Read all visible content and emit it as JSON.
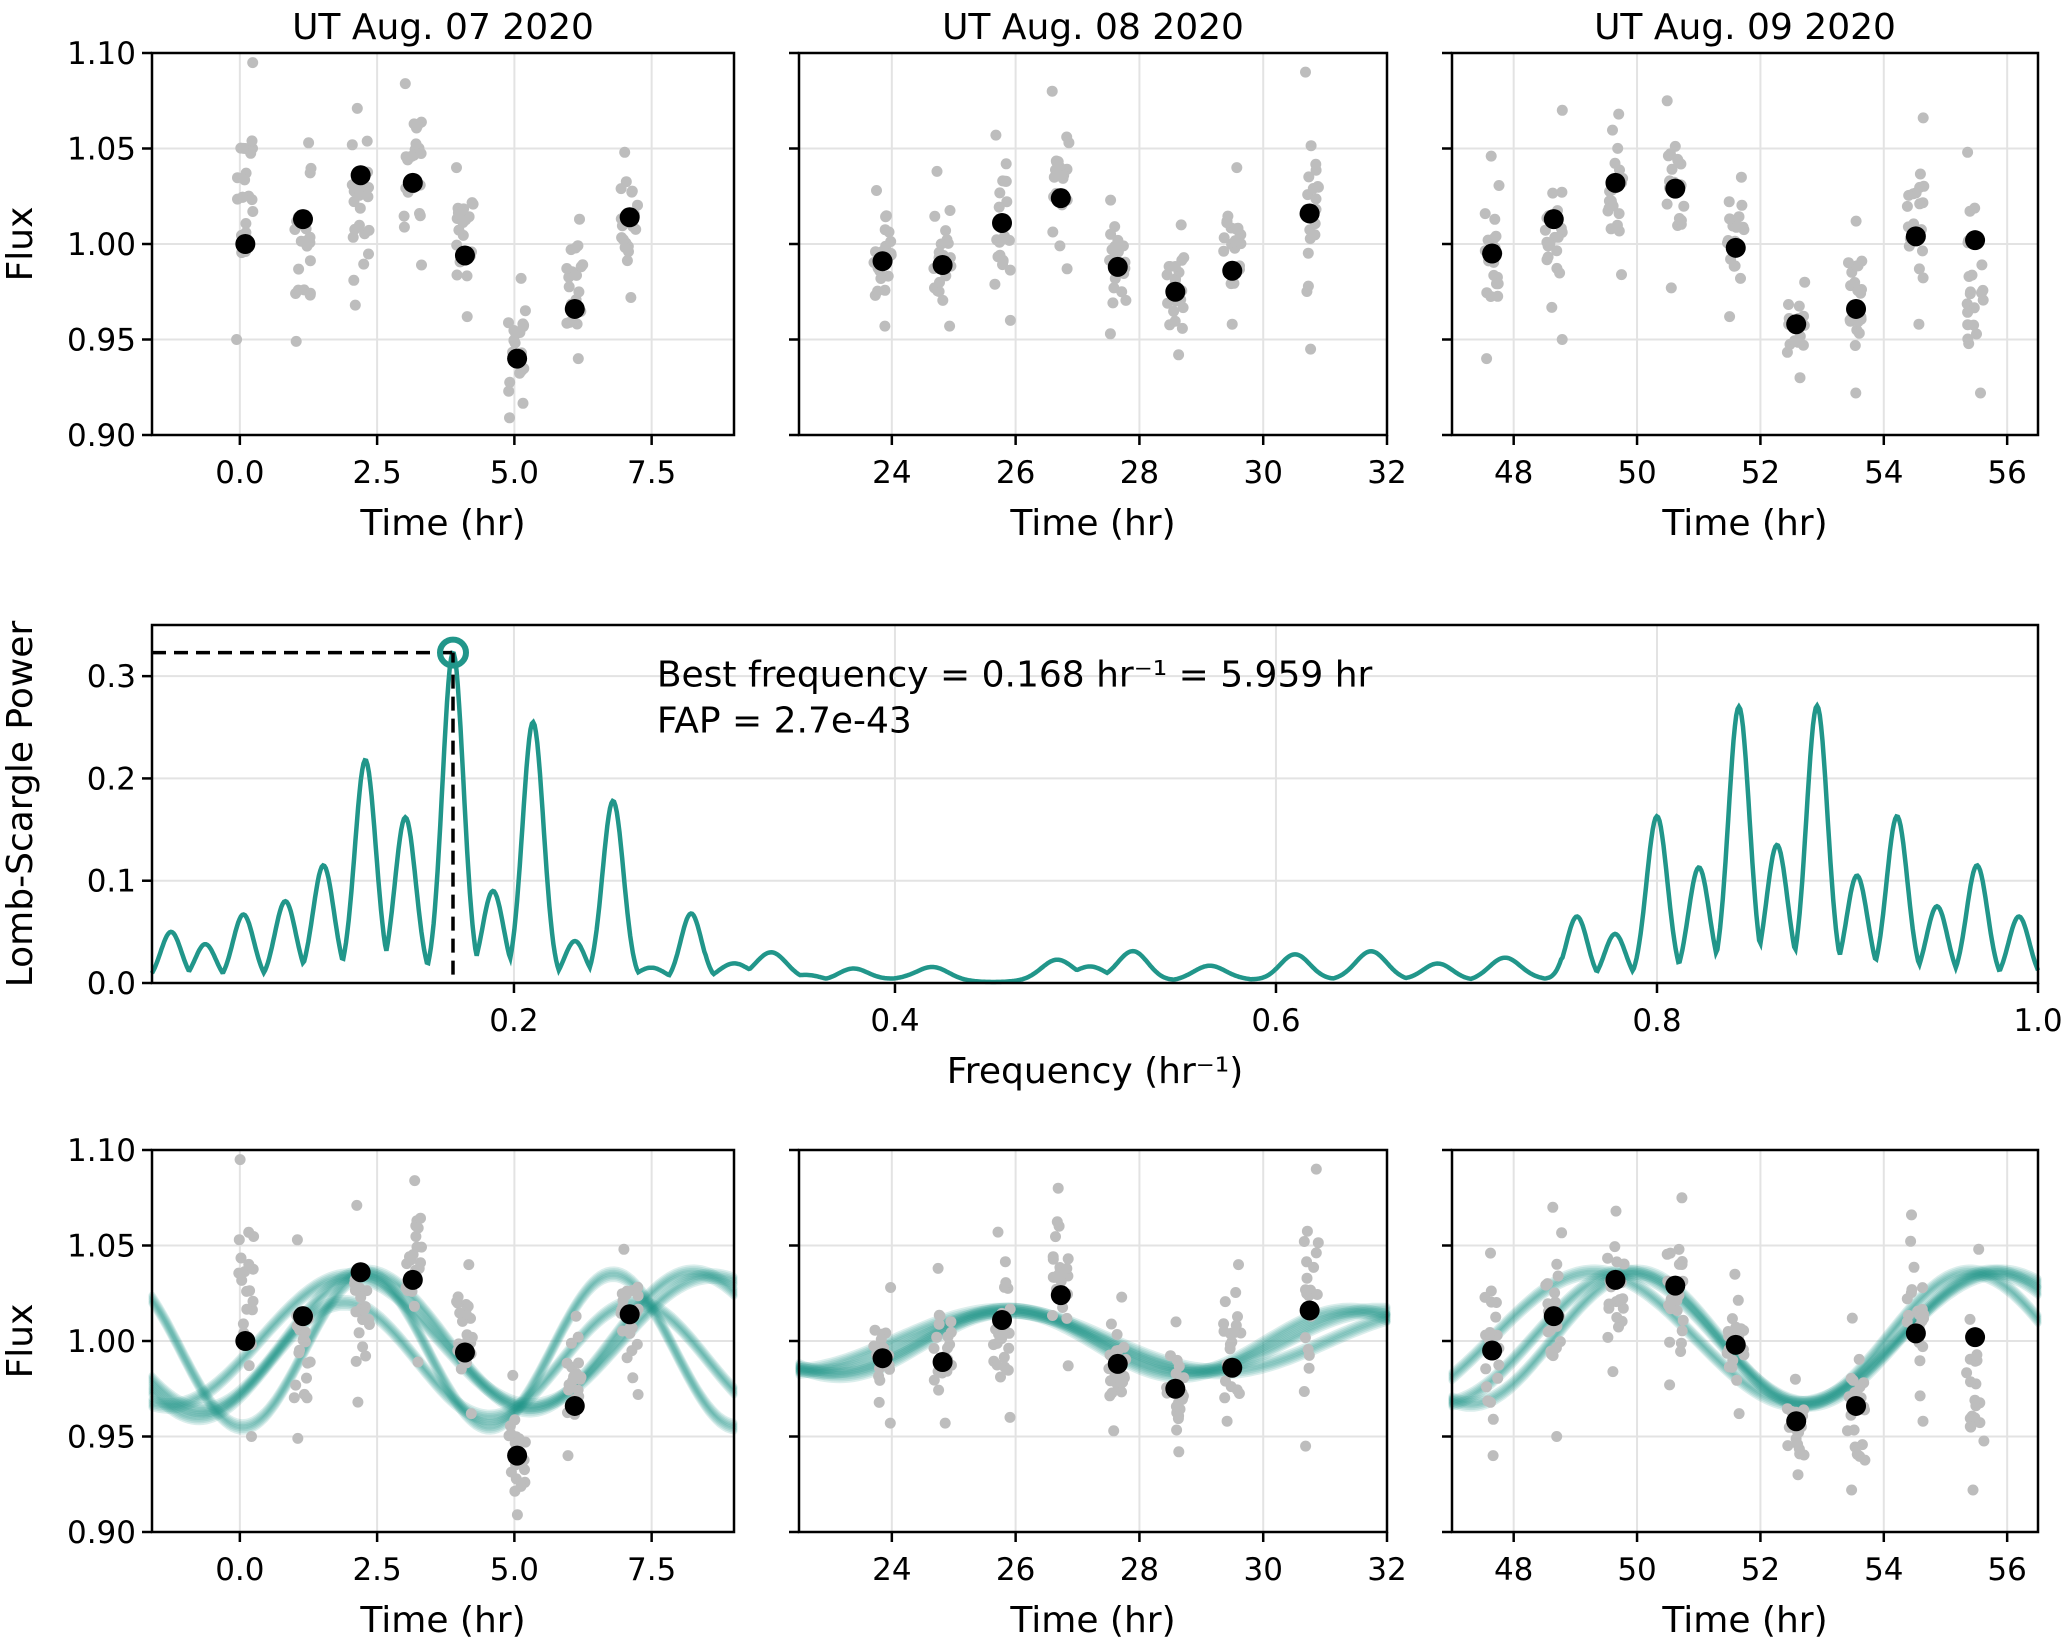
{
  "colors": {
    "teal": "#21968a",
    "raw": "#bdbdbd",
    "binned": "#000000",
    "grid": "#e3e3e3"
  },
  "chart_data": [
    {
      "id": "lc-day1",
      "type": "scatter",
      "row": "top",
      "title": "UT Aug. 07 2020",
      "xlabel": "Time (hr)",
      "ylabel": "Flux",
      "xlim": [
        -1.6,
        9.0
      ],
      "ylim": [
        0.9,
        1.1
      ],
      "xticks": [
        0.0,
        2.5,
        5.0,
        7.5
      ],
      "xtick_labels": [
        "0.0",
        "2.5",
        "5.0",
        "7.5"
      ],
      "yticks": [
        0.9,
        0.95,
        1.0,
        1.05,
        1.1
      ],
      "ytick_labels": [
        "0.90",
        "0.95",
        "1.00",
        "1.05",
        "1.10"
      ],
      "grid": true,
      "binned": {
        "x": [
          0.1,
          1.15,
          2.2,
          3.15,
          4.1,
          5.05,
          6.1,
          7.1
        ],
        "y": [
          1.0,
          1.013,
          1.036,
          1.032,
          0.994,
          0.94,
          0.966,
          1.014
        ]
      },
      "raw_spread": [
        [
          0.95,
          1.095
        ],
        [
          0.949,
          1.053
        ],
        [
          0.968,
          1.071
        ],
        [
          0.989,
          1.084
        ],
        [
          0.962,
          1.04
        ],
        [
          0.909,
          0.982
        ],
        [
          0.94,
          1.013
        ],
        [
          0.972,
          1.048
        ]
      ]
    },
    {
      "id": "lc-day2",
      "type": "scatter",
      "row": "top",
      "title": "UT Aug. 08 2020",
      "xlabel": "Time (hr)",
      "ylabel": "",
      "xlim": [
        22.5,
        32.0
      ],
      "ylim": [
        0.9,
        1.1
      ],
      "xticks": [
        24,
        26,
        28,
        30,
        32
      ],
      "xtick_labels": [
        "24",
        "26",
        "28",
        "30",
        "32"
      ],
      "yticks": [
        0.9,
        0.95,
        1.0,
        1.05,
        1.1
      ],
      "ytick_labels": [],
      "grid": true,
      "binned": {
        "x": [
          23.85,
          24.82,
          25.78,
          26.73,
          27.65,
          28.58,
          29.5,
          30.75
        ],
        "y": [
          0.991,
          0.989,
          1.011,
          1.024,
          0.988,
          0.975,
          0.986,
          1.016
        ]
      },
      "raw_spread": [
        [
          0.957,
          1.028
        ],
        [
          0.957,
          1.038
        ],
        [
          0.96,
          1.057
        ],
        [
          0.987,
          1.08
        ],
        [
          0.953,
          1.023
        ],
        [
          0.942,
          1.01
        ],
        [
          0.958,
          1.04
        ],
        [
          0.945,
          1.09
        ]
      ]
    },
    {
      "id": "lc-day3",
      "type": "scatter",
      "row": "top",
      "title": "UT Aug. 09 2020",
      "xlabel": "Time (hr)",
      "ylabel": "",
      "xlim": [
        47.0,
        56.5
      ],
      "ylim": [
        0.9,
        1.1
      ],
      "xticks": [
        48,
        50,
        52,
        54,
        56
      ],
      "xtick_labels": [
        "48",
        "50",
        "52",
        "54",
        "56"
      ],
      "yticks": [
        0.9,
        0.95,
        1.0,
        1.05,
        1.1
      ],
      "ytick_labels": [],
      "grid": true,
      "binned": {
        "x": [
          47.65,
          48.65,
          49.65,
          50.62,
          51.6,
          52.58,
          53.55,
          54.52,
          55.48
        ],
        "y": [
          0.995,
          1.013,
          1.032,
          1.029,
          0.998,
          0.958,
          0.966,
          1.004,
          1.002
        ]
      },
      "raw_spread": [
        [
          0.94,
          1.046
        ],
        [
          0.95,
          1.07
        ],
        [
          0.984,
          1.068
        ],
        [
          0.977,
          1.075
        ],
        [
          0.962,
          1.035
        ],
        [
          0.93,
          0.98
        ],
        [
          0.922,
          1.012
        ],
        [
          0.958,
          1.066
        ],
        [
          0.922,
          1.048
        ]
      ]
    },
    {
      "id": "periodogram",
      "type": "line",
      "title": "",
      "xlabel": "Frequency (hr⁻¹)",
      "ylabel": "Lomb-Scargle Power",
      "xlim": [
        0.01,
        1.0
      ],
      "ylim": [
        0.0,
        0.35
      ],
      "xticks": [
        0.2,
        0.4,
        0.6,
        0.8,
        1.0
      ],
      "xtick_labels": [
        "0.2",
        "0.4",
        "0.6",
        "0.8",
        "1.0"
      ],
      "yticks": [
        0.0,
        0.1,
        0.2,
        0.3
      ],
      "ytick_labels": [
        "0.0",
        "0.1",
        "0.2",
        "0.3"
      ],
      "grid": true,
      "peaks": {
        "freq": [
          0.02,
          0.038,
          0.058,
          0.08,
          0.1,
          0.122,
          0.143,
          0.168,
          0.189,
          0.21,
          0.232,
          0.252,
          0.272,
          0.293,
          0.315,
          0.335,
          0.355,
          0.378,
          0.42,
          0.485,
          0.503,
          0.525,
          0.565,
          0.61,
          0.65,
          0.685,
          0.72,
          0.758,
          0.778,
          0.8,
          0.822,
          0.843,
          0.863,
          0.884,
          0.905,
          0.926,
          0.947,
          0.968,
          0.99
        ],
        "power": [
          0.05,
          0.038,
          0.067,
          0.08,
          0.115,
          0.218,
          0.162,
          0.323,
          0.09,
          0.255,
          0.041,
          0.178,
          0.015,
          0.068,
          0.016,
          0.025,
          0.005,
          0.013,
          0.011,
          0.018,
          0.012,
          0.03,
          0.012,
          0.027,
          0.026,
          0.018,
          0.02,
          0.065,
          0.048,
          0.163,
          0.113,
          0.27,
          0.135,
          0.271,
          0.105,
          0.163,
          0.075,
          0.115,
          0.065
        ]
      },
      "best": {
        "freq": 0.168,
        "power": 0.323
      },
      "annotations": [
        "Best frequency = 0.168 hr⁻¹ = 5.959 hr",
        "FAP = 2.7e-43"
      ]
    },
    {
      "id": "fit-day1",
      "type": "scatter",
      "row": "bottom",
      "title": "",
      "xlabel": "Time (hr)",
      "ylabel": "Flux",
      "xlim": [
        -1.6,
        9.0
      ],
      "ylim": [
        0.9,
        1.1
      ],
      "xticks": [
        0.0,
        2.5,
        5.0,
        7.5
      ],
      "xtick_labels": [
        "0.0",
        "2.5",
        "5.0",
        "7.5"
      ],
      "yticks": [
        0.9,
        0.95,
        1.0,
        1.05,
        1.1
      ],
      "ytick_labels": [
        "0.90",
        "0.95",
        "1.00",
        "1.05",
        "1.10"
      ],
      "grid": true,
      "ref": "lc-day1",
      "model_curves": [
        {
          "mean": 1.0,
          "amp": 0.034,
          "period": 6.6,
          "peak_t": 2.0
        },
        {
          "mean": 1.0,
          "amp": 0.036,
          "period": 5.96,
          "peak_t": 2.3
        },
        {
          "mean": 0.99,
          "amp": 0.03,
          "period": 5.3,
          "peak_t": 1.9
        },
        {
          "mean": 0.995,
          "amp": 0.04,
          "period": 4.5,
          "peak_t": 2.3
        }
      ]
    },
    {
      "id": "fit-day2",
      "type": "scatter",
      "row": "bottom",
      "title": "",
      "xlabel": "Time (hr)",
      "ylabel": "",
      "xlim": [
        22.5,
        32.0
      ],
      "ylim": [
        0.9,
        1.1
      ],
      "xticks": [
        24,
        26,
        28,
        30,
        32
      ],
      "xtick_labels": [
        "24",
        "26",
        "28",
        "30",
        "32"
      ],
      "yticks": [
        0.9,
        0.95,
        1.0,
        1.05,
        1.1
      ],
      "ytick_labels": [],
      "grid": true,
      "ref": "lc-day2",
      "model_curves": [
        {
          "mean": 1.0,
          "amp": 0.016,
          "period": 7.0,
          "peak_t": 25.8
        },
        {
          "mean": 1.0,
          "amp": 0.016,
          "period": 5.96,
          "peak_t": 25.9
        },
        {
          "mean": 0.999,
          "amp": 0.017,
          "period": 5.5,
          "peak_t": 25.9
        }
      ]
    },
    {
      "id": "fit-day3",
      "type": "scatter",
      "row": "bottom",
      "title": "",
      "xlabel": "Time (hr)",
      "ylabel": "",
      "xlim": [
        47.0,
        56.5
      ],
      "ylim": [
        0.9,
        1.1
      ],
      "xticks": [
        48,
        50,
        52,
        54,
        56
      ],
      "xtick_labels": [
        "48",
        "50",
        "52",
        "54",
        "56"
      ],
      "yticks": [
        0.9,
        0.95,
        1.0,
        1.05,
        1.1
      ],
      "ytick_labels": [],
      "grid": true,
      "ref": "lc-day3",
      "model_curves": [
        {
          "mean": 1.0015,
          "amp": 0.0345,
          "period": 5.96,
          "peak_t": 49.8
        },
        {
          "mean": 1.0015,
          "amp": 0.0345,
          "period": 6.6,
          "peak_t": 49.3
        },
        {
          "mean": 1.0015,
          "amp": 0.0345,
          "period": 5.4,
          "peak_t": 50.0
        }
      ]
    }
  ]
}
